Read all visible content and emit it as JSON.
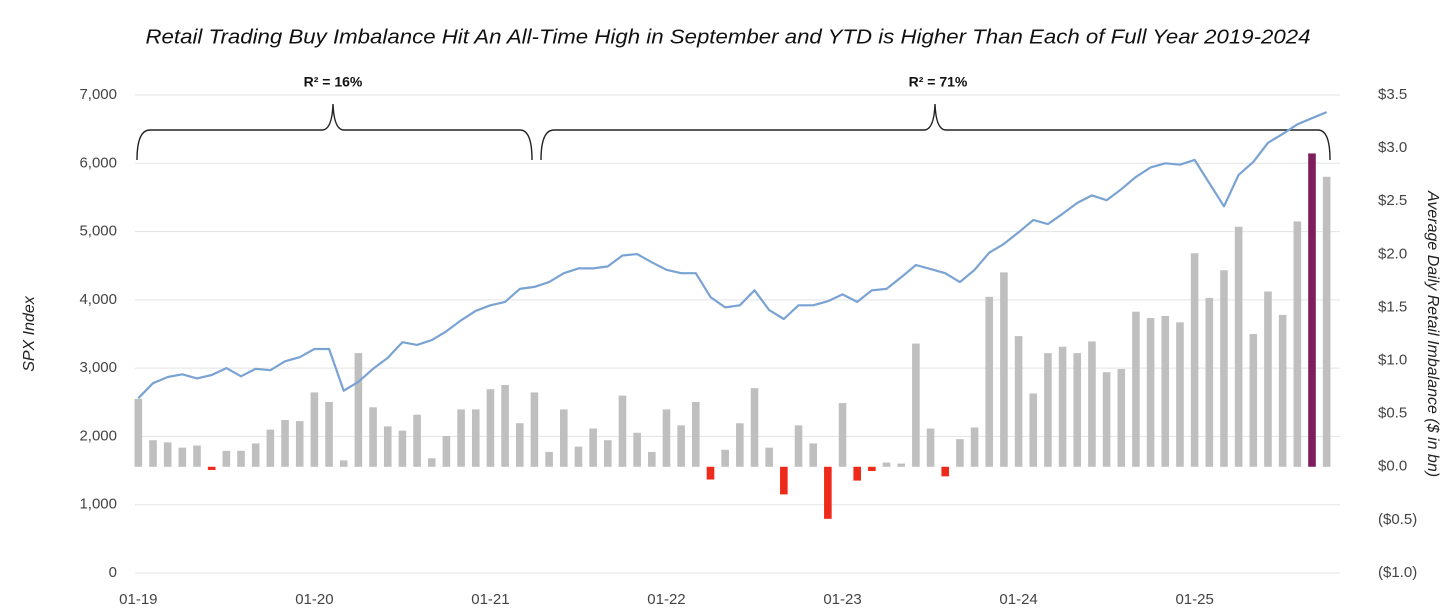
{
  "chart_data": {
    "type": "combo",
    "title": "Retail Trading Buy Imbalance Hit An All-Time High in September and YTD is Higher Than Each of Full Year 2019-2024",
    "y_label": "SPX Index",
    "y2_label": "Average Daily Retail Imbalance ($ in bn)",
    "annotations": [
      "R² = 16%",
      "R² = 71%"
    ],
    "categories": [
      "01-19",
      null,
      null,
      null,
      null,
      null,
      null,
      null,
      null,
      null,
      null,
      null,
      "01-20",
      null,
      null,
      null,
      null,
      null,
      null,
      null,
      null,
      null,
      null,
      null,
      "01-21",
      null,
      null,
      null,
      null,
      null,
      null,
      null,
      null,
      null,
      null,
      null,
      "01-22",
      null,
      null,
      null,
      null,
      null,
      null,
      null,
      null,
      null,
      null,
      null,
      "01-23",
      null,
      null,
      null,
      null,
      null,
      null,
      null,
      null,
      null,
      null,
      null,
      "01-24",
      null,
      null,
      null,
      null,
      null,
      null,
      null,
      null,
      null,
      null,
      null,
      "01-25",
      null,
      null,
      null,
      null,
      null,
      null,
      null,
      null,
      null
    ],
    "ylim": [
      0,
      7000
    ],
    "yticks": [
      0,
      {
        "value": 1000,
        "label": "1,000"
      },
      {
        "value": 2000,
        "label": "2,000"
      },
      {
        "value": 3000,
        "label": "3,000"
      },
      {
        "value": 4000,
        "label": "4,000"
      },
      {
        "value": 5000,
        "label": "5,000"
      },
      {
        "value": 6000,
        "label": "6,000"
      },
      {
        "value": 7000,
        "label": "7,000"
      }
    ],
    "y2lim": [
      -1.0,
      3.5
    ],
    "y2ticks": [
      {
        "value": -1.0,
        "label": "($1.0)"
      },
      {
        "value": -0.5,
        "label": "($0.5)"
      },
      {
        "value": 0,
        "label": "$0.0"
      },
      {
        "value": 0.5,
        "label": "$0.5"
      },
      {
        "value": 1.0,
        "label": "$1.0"
      },
      {
        "value": 1.5,
        "label": "$1.5"
      },
      {
        "value": 2.0,
        "label": "$2.0"
      },
      {
        "value": 2.5,
        "label": "$2.5"
      },
      {
        "value": 3.0,
        "label": "$3.0"
      },
      {
        "value": 3.5,
        "label": "$3.5"
      }
    ],
    "grid": true,
    "series": [
      {
        "type": "bar",
        "axis": "y2",
        "values": [
          0.64,
          0.25,
          0.23,
          0.18,
          0.2,
          -0.03,
          0.15,
          0.15,
          0.22,
          0.35,
          0.44,
          0.43,
          0.7,
          0.61,
          0.06,
          1.07,
          0.56,
          0.38,
          0.34,
          0.49,
          0.08,
          0.29,
          0.54,
          0.54,
          0.73,
          0.77,
          0.41,
          0.7,
          0.14,
          0.54,
          0.19,
          0.36,
          0.25,
          0.67,
          0.32,
          0.14,
          0.54,
          0.39,
          0.61,
          -0.12,
          0.16,
          0.41,
          0.74,
          0.18,
          -0.26,
          0.39,
          0.22,
          -0.49,
          0.6,
          -0.13,
          -0.04,
          0.04,
          0.03,
          1.16,
          0.36,
          -0.09,
          0.26,
          0.37,
          1.6,
          1.83,
          1.23,
          0.69,
          1.07,
          1.13,
          1.07,
          1.18,
          0.89,
          0.92,
          1.46,
          1.4,
          1.42,
          1.36,
          2.01,
          1.59,
          1.85,
          2.26,
          1.25,
          1.65,
          1.43,
          2.31,
          2.95,
          2.73
        ],
        "colors": [
          "#bfbfbf",
          "#bfbfbf",
          "#bfbfbf",
          "#bfbfbf",
          "#bfbfbf",
          "#ee2a1b",
          "#bfbfbf",
          "#bfbfbf",
          "#bfbfbf",
          "#bfbfbf",
          "#bfbfbf",
          "#bfbfbf",
          "#bfbfbf",
          "#bfbfbf",
          "#bfbfbf",
          "#bfbfbf",
          "#bfbfbf",
          "#bfbfbf",
          "#bfbfbf",
          "#bfbfbf",
          "#bfbfbf",
          "#bfbfbf",
          "#bfbfbf",
          "#bfbfbf",
          "#bfbfbf",
          "#bfbfbf",
          "#bfbfbf",
          "#bfbfbf",
          "#bfbfbf",
          "#bfbfbf",
          "#bfbfbf",
          "#bfbfbf",
          "#bfbfbf",
          "#bfbfbf",
          "#bfbfbf",
          "#bfbfbf",
          "#bfbfbf",
          "#bfbfbf",
          "#bfbfbf",
          "#ee2a1b",
          "#bfbfbf",
          "#bfbfbf",
          "#bfbfbf",
          "#bfbfbf",
          "#ee2a1b",
          "#bfbfbf",
          "#bfbfbf",
          "#ee2a1b",
          "#bfbfbf",
          "#ee2a1b",
          "#ee2a1b",
          "#bfbfbf",
          "#bfbfbf",
          "#bfbfbf",
          "#bfbfbf",
          "#ee2a1b",
          "#bfbfbf",
          "#bfbfbf",
          "#bfbfbf",
          "#bfbfbf",
          "#bfbfbf",
          "#bfbfbf",
          "#bfbfbf",
          "#bfbfbf",
          "#bfbfbf",
          "#bfbfbf",
          "#bfbfbf",
          "#bfbfbf",
          "#bfbfbf",
          "#bfbfbf",
          "#bfbfbf",
          "#bfbfbf",
          "#bfbfbf",
          "#bfbfbf",
          "#bfbfbf",
          "#bfbfbf",
          "#bfbfbf",
          "#bfbfbf",
          "#bfbfbf",
          "#bfbfbf",
          "#7e1e5b",
          "#bfbfbf"
        ]
      },
      {
        "type": "line",
        "axis": "y",
        "color": "#7aa3d3",
        "values": [
          2560,
          2780,
          2870,
          2910,
          2850,
          2900,
          3000,
          2880,
          2990,
          2970,
          3100,
          3160,
          3280,
          3280,
          2670,
          2800,
          2990,
          3150,
          3380,
          3340,
          3410,
          3540,
          3700,
          3840,
          3920,
          3970,
          4160,
          4190,
          4260,
          4390,
          4460,
          4460,
          4490,
          4650,
          4670,
          4550,
          4440,
          4390,
          4390,
          4040,
          3890,
          3920,
          4140,
          3850,
          3720,
          3920,
          3920,
          3980,
          4080,
          3970,
          4140,
          4160,
          4330,
          4510,
          4450,
          4390,
          4260,
          4440,
          4690,
          4820,
          4990,
          5170,
          5110,
          5260,
          5420,
          5530,
          5460,
          5620,
          5800,
          5940,
          6000,
          5980,
          6050,
          5710,
          5370,
          5830,
          6020,
          6300,
          6430,
          6570,
          6660,
          6750
        ]
      }
    ]
  }
}
